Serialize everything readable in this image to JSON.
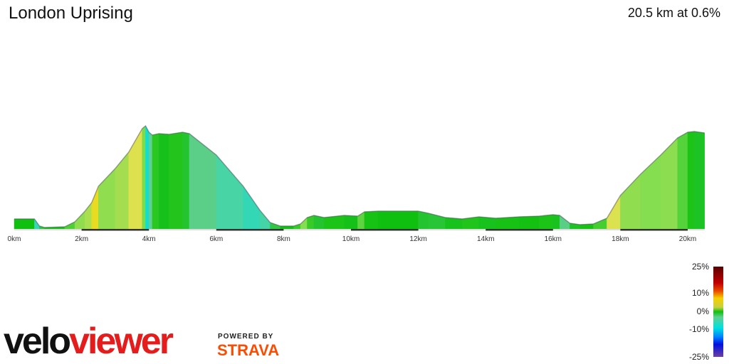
{
  "title": "London Uprising",
  "summary": "20.5 km at 0.6%",
  "chart_data": {
    "type": "area",
    "title": "London Uprising",
    "xlabel": "",
    "ylabel": "",
    "xlim": [
      0,
      20.5
    ],
    "x_ticks": [
      "0km",
      "2km",
      "4km",
      "6km",
      "8km",
      "10km",
      "12km",
      "14km",
      "16km",
      "18km",
      "20km"
    ],
    "distance_km": [
      0,
      0.6,
      0.75,
      0.9,
      1.5,
      1.8,
      2.1,
      2.3,
      2.5,
      3.0,
      3.4,
      3.8,
      3.9,
      4.0,
      4.1,
      4.3,
      4.6,
      5.0,
      5.2,
      6.0,
      6.8,
      7.3,
      7.6,
      7.9,
      8.3,
      8.5,
      8.7,
      8.9,
      9.2,
      9.8,
      10.2,
      10.4,
      10.8,
      12.0,
      12.3,
      12.8,
      13.3,
      13.8,
      14.3,
      15.0,
      15.6,
      16.0,
      16.2,
      16.5,
      16.8,
      17.2,
      17.6,
      18.0,
      18.6,
      19.2,
      19.7,
      20.0,
      20.2,
      20.5
    ],
    "elevation_rel": [
      14,
      14,
      4,
      2,
      3,
      10,
      25,
      37,
      60,
      85,
      108,
      141,
      145,
      136,
      132,
      134,
      133,
      136,
      134,
      104,
      60,
      26,
      9,
      4,
      4,
      7,
      16,
      19,
      16,
      19,
      18,
      24,
      25,
      25,
      22,
      16,
      14,
      17,
      15,
      17,
      18,
      20,
      19,
      8,
      6,
      7,
      15,
      47,
      77,
      104,
      128,
      136,
      137,
      135
    ],
    "gradient_legend": [
      "25%",
      "10%",
      "0%",
      "-10%",
      "-25%"
    ],
    "grid": false
  },
  "branding": {
    "logo_part1": "velo",
    "logo_part2": "viewer",
    "powered_by": "POWERED BY",
    "strava": "STRAVA"
  }
}
